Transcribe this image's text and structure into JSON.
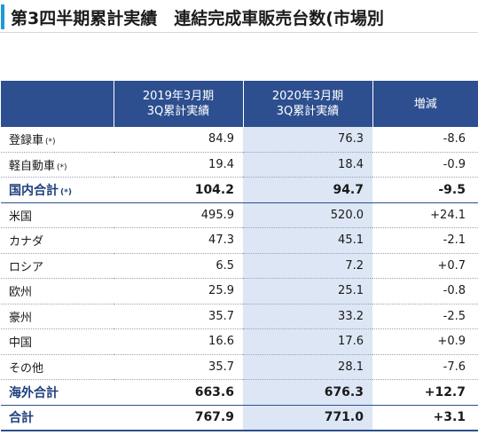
{
  "page": {
    "title": "第3四半期累計実績　連結完成車販売台数(市場別"
  },
  "table": {
    "headers": {
      "label": "",
      "prev_line1": "2019年3月期",
      "prev_line2": "3Q累計実績",
      "cur_line1": "2020年3月期",
      "cur_line2": "3Q累計実績",
      "change": "増減"
    },
    "rows": [
      {
        "label": "登録車",
        "note": "(*)",
        "prev": "84.9",
        "cur": "76.3",
        "change": "-8.6",
        "bold": false
      },
      {
        "label": "軽自動車",
        "note": "(*)",
        "prev": "19.4",
        "cur": "18.4",
        "change": "-0.9",
        "bold": false
      },
      {
        "label": "国内合計",
        "note": "(*)",
        "prev": "104.2",
        "cur": "94.7",
        "change": "-9.5",
        "bold": true
      },
      {
        "label": "米国",
        "note": "",
        "prev": "495.9",
        "cur": "520.0",
        "change": "+24.1",
        "bold": false
      },
      {
        "label": "カナダ",
        "note": "",
        "prev": "47.3",
        "cur": "45.1",
        "change": "-2.1",
        "bold": false
      },
      {
        "label": "ロシア",
        "note": "",
        "prev": "6.5",
        "cur": "7.2",
        "change": "+0.7",
        "bold": false
      },
      {
        "label": "欧州",
        "note": "",
        "prev": "25.9",
        "cur": "25.1",
        "change": "-0.8",
        "bold": false
      },
      {
        "label": "豪州",
        "note": "",
        "prev": "35.7",
        "cur": "33.2",
        "change": "-2.5",
        "bold": false
      },
      {
        "label": "中国",
        "note": "",
        "prev": "16.6",
        "cur": "17.6",
        "change": "+0.9",
        "bold": false
      },
      {
        "label": "その他",
        "note": "",
        "prev": "35.7",
        "cur": "28.1",
        "change": "-7.6",
        "bold": false
      },
      {
        "label": "海外合計",
        "note": "",
        "prev": "663.6",
        "cur": "676.3",
        "change": "+12.7",
        "bold": true
      },
      {
        "label": "合計",
        "note": "",
        "prev": "767.9",
        "cur": "771.0",
        "change": "+3.1",
        "bold": true
      }
    ]
  },
  "colors": {
    "accent": "#1f9ad6",
    "header_bg": "#2d4f8f",
    "highlight_col": "#dde6f4"
  }
}
